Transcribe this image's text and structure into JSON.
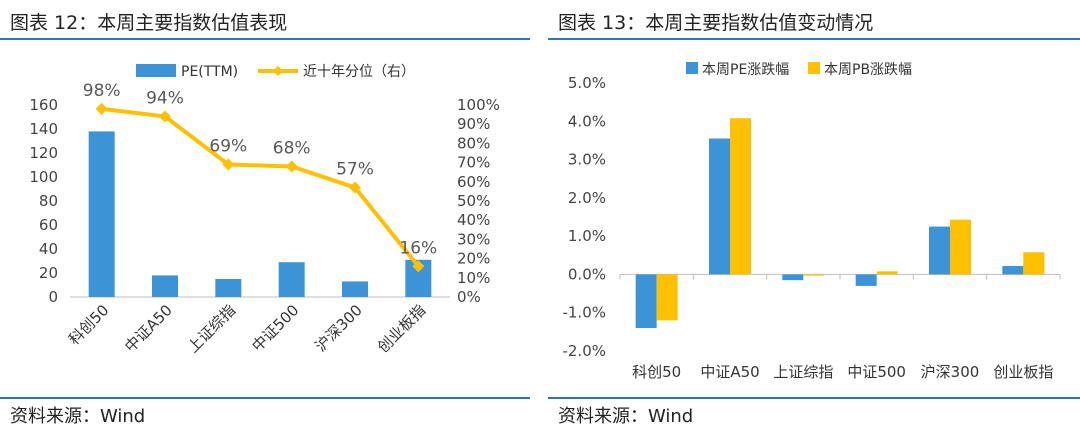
{
  "left": {
    "title": "图表 12：本周主要指数估值表现",
    "source": "资料来源：Wind"
  },
  "right": {
    "title": "图表 13：本周主要指数估值变动情况",
    "source": "资料来源：Wind"
  },
  "colors": {
    "blue": "#3c94d6",
    "gold": "#ffc000",
    "rule": "#2e75b6"
  },
  "chart_data": [
    {
      "type": "bar",
      "categories": [
        "科创50",
        "中证A50",
        "上证综指",
        "中证500",
        "沪深300",
        "创业板指"
      ],
      "series": [
        {
          "name": "PE(TTM)",
          "type": "bar",
          "axis": "left",
          "values": [
            138,
            18,
            15,
            29,
            13,
            31
          ]
        },
        {
          "name": "近十年分位（右）",
          "type": "line",
          "axis": "right",
          "values": [
            98,
            94,
            69,
            68,
            57,
            16
          ],
          "labels": [
            "98%",
            "94%",
            "69%",
            "68%",
            "57%",
            "16%"
          ]
        }
      ],
      "ylim": [
        0,
        160
      ],
      "y_ticks": [
        "0",
        "20",
        "40",
        "60",
        "80",
        "100",
        "120",
        "140",
        "160"
      ],
      "y2lim": [
        0,
        100
      ],
      "y2_ticks": [
        "0%",
        "10%",
        "20%",
        "30%",
        "40%",
        "50%",
        "60%",
        "70%",
        "80%",
        "90%",
        "100%"
      ],
      "legend": "top"
    },
    {
      "type": "bar",
      "categories": [
        "科创50",
        "中证A50",
        "上证综指",
        "中证500",
        "沪深300",
        "创业板指"
      ],
      "series": [
        {
          "name": "本周PE涨跌幅",
          "values": [
            -1.4,
            3.55,
            -0.15,
            -0.3,
            1.25,
            0.22
          ]
        },
        {
          "name": "本周PB涨跌幅",
          "values": [
            -1.2,
            4.08,
            -0.03,
            0.08,
            1.43,
            0.58
          ]
        }
      ],
      "ylim": [
        -2.0,
        5.0
      ],
      "y_ticks": [
        "-2.0%",
        "-1.0%",
        "0.0%",
        "1.0%",
        "2.0%",
        "3.0%",
        "4.0%",
        "5.0%"
      ],
      "legend": "top"
    }
  ]
}
